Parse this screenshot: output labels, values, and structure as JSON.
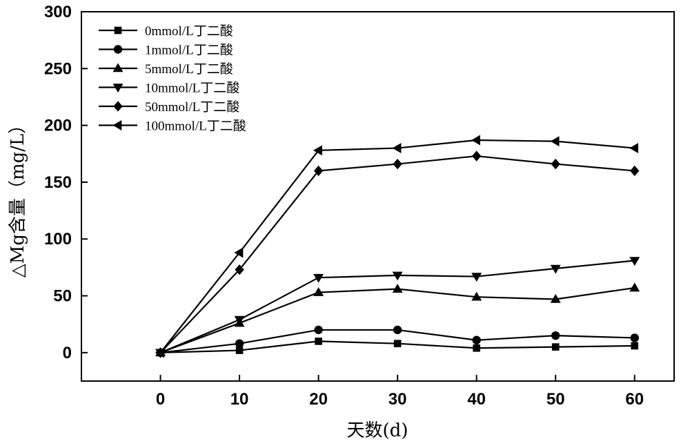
{
  "chart_data": {
    "type": "line",
    "title": "",
    "xlabel": "天数(d)",
    "ylabel": "△Mg含量（mg/L）",
    "xlim": [
      -10,
      65
    ],
    "ylim": [
      -25,
      300
    ],
    "x_ticks": [
      0,
      10,
      20,
      30,
      40,
      50,
      60
    ],
    "y_ticks": [
      0,
      50,
      100,
      150,
      200,
      250,
      300
    ],
    "grid": false,
    "legend_position": "top-left",
    "x": [
      0,
      10,
      20,
      30,
      40,
      50,
      60
    ],
    "series": [
      {
        "name": "0mmol/L丁二酸",
        "marker": "square",
        "values": [
          0,
          2,
          10,
          8,
          4,
          5,
          6
        ]
      },
      {
        "name": "1mmol/L丁二酸",
        "marker": "circle",
        "values": [
          0,
          8,
          20,
          20,
          11,
          15,
          13
        ]
      },
      {
        "name": "5mmol/L丁二酸",
        "marker": "triangle-up",
        "values": [
          0,
          26,
          53,
          56,
          49,
          47,
          57
        ]
      },
      {
        "name": "10mmol/L丁二酸",
        "marker": "triangle-down",
        "values": [
          0,
          29,
          66,
          68,
          67,
          74,
          81
        ]
      },
      {
        "name": "50mmol/L丁二酸",
        "marker": "diamond",
        "values": [
          0,
          73,
          160,
          166,
          173,
          166,
          160
        ]
      },
      {
        "name": "100mmol/L丁二酸",
        "marker": "triangle-left",
        "values": [
          0,
          88,
          178,
          180,
          187,
          186,
          180
        ]
      }
    ]
  }
}
